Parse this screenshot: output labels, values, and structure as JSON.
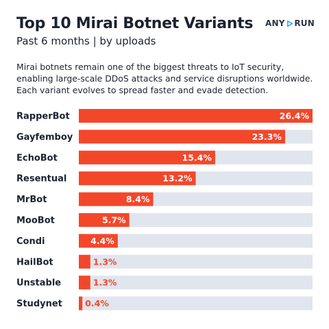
{
  "header": {
    "title": "Top 10 Mirai Botnet Variants",
    "subtitle": "Past 6 months | by uploads",
    "logo_left": "ANY",
    "logo_right": "RUN",
    "logo_icon": "play-triangle-icon"
  },
  "description": "Mirai botnets remain one of the biggest threats to IoT security, enabling large-scale DDoS attacks and service disruptions worldwide. Each variant evolves to spread faster and evade detection.",
  "colors": {
    "bar": "#f3472a",
    "track": "#e1e5ed",
    "logo_accent": "#1ea0e6"
  },
  "chart_data": {
    "type": "bar",
    "orientation": "horizontal",
    "categories": [
      "RapperBot",
      "Gayfemboy",
      "EchoBot",
      "Resentual",
      "MrBot",
      "MooBot",
      "Condi",
      "HailBot",
      "Unstable",
      "Studynet"
    ],
    "values": [
      26.4,
      23.3,
      15.4,
      13.2,
      8.4,
      5.7,
      4.4,
      1.3,
      1.3,
      0.4
    ],
    "value_labels": [
      "26.4%",
      "23.3%",
      "15.4%",
      "13.2%",
      "8.4%",
      "5.7%",
      "4.4%",
      "1.3%",
      "1.3%",
      "0.4%"
    ],
    "unit": "%",
    "xlim": [
      0,
      26.4
    ],
    "grid": false,
    "legend": "none"
  }
}
